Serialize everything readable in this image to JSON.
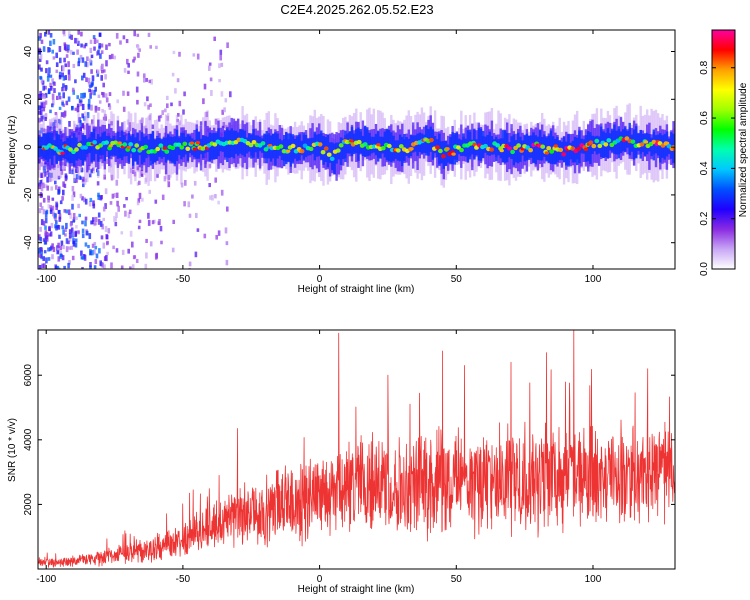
{
  "title": "C2E4.2025.262.05.52.E23",
  "chart_data": [
    {
      "type": "heatmap",
      "name": "spectrogram",
      "title": "C2E4.2025.262.05.52.E23",
      "xlabel": "Height of straight line (km)",
      "ylabel": "Frequency (Hz)",
      "xlim": [
        -103,
        130
      ],
      "ylim": [
        -51,
        49
      ],
      "xticks": [
        -100,
        -50,
        0,
        50,
        100
      ],
      "xtick_labels": [
        "-100",
        "-50",
        "0",
        "50",
        "100"
      ],
      "yticks": [
        -40,
        -20,
        0,
        20,
        40
      ],
      "ytick_labels": [
        "-40",
        "-20",
        "0",
        "20",
        "40"
      ],
      "colorbar": {
        "label": "Normalized spectral amplitude",
        "range": [
          0,
          0.95
        ],
        "ticks": [
          0.0,
          0.2,
          0.4,
          0.6,
          0.8
        ],
        "tick_labels": [
          "0.0",
          "0.2",
          "0.4",
          "0.6",
          "0.8"
        ],
        "colors": [
          "#ffffff",
          "#c8a6f5",
          "#8a2be2",
          "#1f00ff",
          "#0050ff",
          "#00c8ff",
          "#00ffb0",
          "#00ff00",
          "#a0ff00",
          "#ffff00",
          "#ffa000",
          "#ff0000",
          "#ff00a0"
        ]
      },
      "band": {
        "description_of_data": "main signal ridge center frequency (Hz) vs height (km)",
        "x": [
          -103,
          -90,
          -80,
          -70,
          -60,
          -50,
          -40,
          -30,
          -20,
          -10,
          0,
          5,
          10,
          20,
          30,
          40,
          45,
          50,
          60,
          70,
          80,
          90,
          100,
          110,
          120,
          130
        ],
        "center_hz": [
          0,
          -1,
          1,
          0,
          -1,
          0,
          1,
          2,
          0,
          -1,
          0,
          -4,
          2,
          1,
          -1,
          3,
          -3,
          0,
          1,
          -1,
          0,
          -2,
          1,
          3,
          1,
          0
        ]
      },
      "noise_region_km": [
        -103,
        -45
      ]
    },
    {
      "type": "line",
      "name": "snr",
      "xlabel": "Height of straight line (km)",
      "ylabel": "SNR (10 * v/v)",
      "xlim": [
        -103,
        130
      ],
      "ylim": [
        0,
        7400
      ],
      "xticks": [
        -100,
        -50,
        0,
        50,
        100
      ],
      "xtick_labels": [
        "-100",
        "-50",
        "0",
        "50",
        "100"
      ],
      "yticks": [
        2000,
        4000,
        6000
      ],
      "ytick_labels": [
        "2000",
        "4000",
        "6000"
      ],
      "series": [
        {
          "name": "SNR",
          "color": "#ee3333",
          "envelope_x": [
            -103,
            -90,
            -80,
            -70,
            -60,
            -50,
            -40,
            -30,
            -20,
            -10,
            0,
            10,
            20,
            30,
            40,
            50,
            60,
            70,
            80,
            90,
            100,
            110,
            120,
            130
          ],
          "envelope_mean": [
            200,
            250,
            350,
            500,
            650,
            900,
            1300,
            1600,
            1800,
            2000,
            2200,
            2500,
            2600,
            2700,
            2650,
            2700,
            2750,
            2800,
            2900,
            2900,
            2850,
            2950,
            3000,
            3000
          ],
          "envelope_amp": [
            150,
            180,
            250,
            350,
            450,
            600,
            800,
            1000,
            1200,
            1300,
            1400,
            1500,
            1600,
            1700,
            1700,
            1800,
            1800,
            1800,
            1800,
            1800,
            1700,
            1600,
            1500,
            1500
          ],
          "peaks": [
            {
              "x": 7,
              "y": 7300
            },
            {
              "x": 93,
              "y": 7400
            },
            {
              "x": 45,
              "y": 6750
            },
            {
              "x": 83,
              "y": 6700
            },
            {
              "x": 70,
              "y": 6400
            },
            {
              "x": 53,
              "y": 6300
            },
            {
              "x": 25,
              "y": 6000
            },
            {
              "x": 120,
              "y": 6200
            },
            {
              "x": -30,
              "y": 4350
            }
          ]
        }
      ]
    }
  ]
}
